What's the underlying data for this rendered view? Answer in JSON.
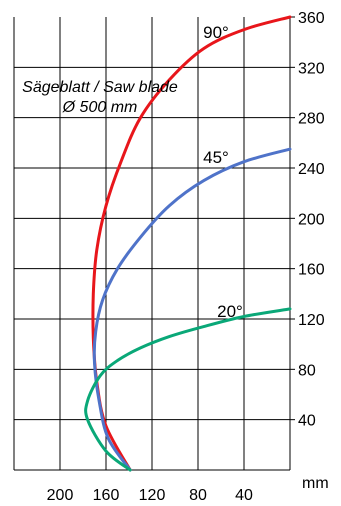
{
  "chart_data": {
    "type": "line",
    "title": "",
    "annotation": {
      "line1": "Sägeblatt / Saw blade",
      "line2": "Ø 500 mm"
    },
    "x_axis": {
      "label": "",
      "unit_label": "mm",
      "reversed": true,
      "range": [
        240,
        0
      ],
      "ticks": [
        "200",
        "160",
        "120",
        "80",
        "40"
      ],
      "tick_values": [
        200,
        160,
        120,
        80,
        40
      ]
    },
    "y_axis": {
      "position": "right",
      "range": [
        0,
        360
      ],
      "ticks": [
        "40",
        "80",
        "120",
        "160",
        "200",
        "240",
        "280",
        "320",
        "360"
      ],
      "tick_values": [
        40,
        80,
        120,
        160,
        200,
        240,
        280,
        320,
        360
      ]
    },
    "grid": true,
    "series": [
      {
        "name": "90°",
        "color": "#e8161b",
        "points": [
          [
            139,
            0
          ],
          [
            160,
            35
          ],
          [
            168,
            70
          ],
          [
            171,
            105
          ],
          [
            171,
            140
          ],
          [
            168,
            175
          ],
          [
            160,
            210
          ],
          [
            147,
            245
          ],
          [
            130,
            280
          ],
          [
            105,
            310
          ],
          [
            75,
            335
          ],
          [
            40,
            350
          ],
          [
            0,
            360
          ]
        ]
      },
      {
        "name": "45°",
        "color": "#4f73c9",
        "points": [
          [
            139,
            0
          ],
          [
            158,
            25
          ],
          [
            166,
            55
          ],
          [
            170,
            85
          ],
          [
            169,
            110
          ],
          [
            163,
            135
          ],
          [
            150,
            160
          ],
          [
            130,
            185
          ],
          [
            105,
            210
          ],
          [
            75,
            230
          ],
          [
            40,
            245
          ],
          [
            0,
            255
          ]
        ]
      },
      {
        "name": "20°",
        "color": "#0aa878",
        "points": [
          [
            139,
            0
          ],
          [
            160,
            15
          ],
          [
            176,
            40
          ],
          [
            176,
            55
          ],
          [
            165,
            75
          ],
          [
            150,
            87
          ],
          [
            130,
            97
          ],
          [
            105,
            106
          ],
          [
            75,
            114
          ],
          [
            40,
            122
          ],
          [
            0,
            128
          ]
        ]
      }
    ]
  }
}
